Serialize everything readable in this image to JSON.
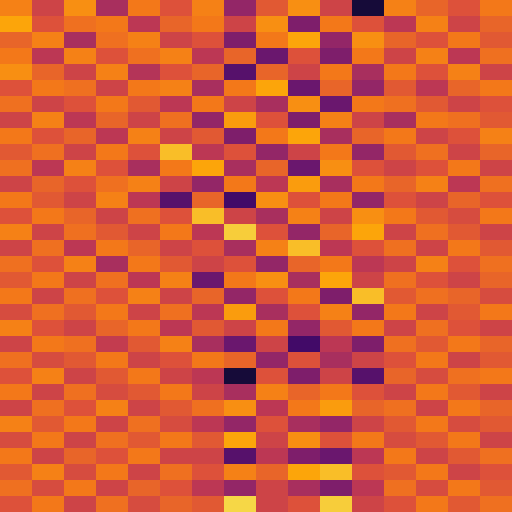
{
  "chart_data": {
    "type": "heatmap",
    "color": "inferno",
    "tick_labels": false,
    "grid": false,
    "zlim": [
      0,
      1
    ],
    "z": [
      [
        0.72,
        0.55,
        0.75,
        0.45,
        0.7,
        0.6,
        0.72,
        0.4,
        0.62,
        0.75,
        0.55,
        0.1,
        0.72,
        0.65,
        0.6,
        0.7
      ],
      [
        0.8,
        0.6,
        0.68,
        0.7,
        0.5,
        0.65,
        0.7,
        0.55,
        0.75,
        0.35,
        0.7,
        0.6,
        0.5,
        0.72,
        0.55,
        0.65
      ],
      [
        0.65,
        0.72,
        0.45,
        0.68,
        0.72,
        0.55,
        0.6,
        0.35,
        0.7,
        0.8,
        0.4,
        0.75,
        0.65,
        0.6,
        0.7,
        0.62
      ],
      [
        0.7,
        0.5,
        0.72,
        0.6,
        0.68,
        0.72,
        0.5,
        0.65,
        0.3,
        0.6,
        0.35,
        0.7,
        0.55,
        0.72,
        0.5,
        0.68
      ],
      [
        0.75,
        0.65,
        0.55,
        0.72,
        0.48,
        0.6,
        0.65,
        0.25,
        0.65,
        0.55,
        0.7,
        0.45,
        0.7,
        0.6,
        0.72,
        0.55
      ],
      [
        0.6,
        0.7,
        0.68,
        0.55,
        0.7,
        0.72,
        0.45,
        0.7,
        0.8,
        0.3,
        0.65,
        0.4,
        0.62,
        0.5,
        0.65,
        0.7
      ],
      [
        0.68,
        0.55,
        0.6,
        0.7,
        0.62,
        0.5,
        0.7,
        0.55,
        0.45,
        0.75,
        0.3,
        0.7,
        0.68,
        0.62,
        0.55,
        0.6
      ],
      [
        0.55,
        0.72,
        0.5,
        0.65,
        0.55,
        0.68,
        0.4,
        0.78,
        0.6,
        0.35,
        0.72,
        0.55,
        0.45,
        0.7,
        0.68,
        0.62
      ],
      [
        0.7,
        0.6,
        0.65,
        0.5,
        0.72,
        0.55,
        0.62,
        0.35,
        0.7,
        0.8,
        0.45,
        0.65,
        0.7,
        0.55,
        0.6,
        0.72
      ],
      [
        0.62,
        0.68,
        0.55,
        0.7,
        0.6,
        0.85,
        0.5,
        0.6,
        0.4,
        0.55,
        0.7,
        0.4,
        0.62,
        0.68,
        0.55,
        0.65
      ],
      [
        0.68,
        0.5,
        0.72,
        0.6,
        0.45,
        0.7,
        0.8,
        0.45,
        0.65,
        0.3,
        0.75,
        0.6,
        0.55,
        0.6,
        0.7,
        0.55
      ],
      [
        0.55,
        0.65,
        0.6,
        0.68,
        0.72,
        0.55,
        0.4,
        0.7,
        0.5,
        0.78,
        0.45,
        0.7,
        0.65,
        0.72,
        0.5,
        0.68
      ],
      [
        0.7,
        0.62,
        0.55,
        0.72,
        0.5,
        0.25,
        0.65,
        0.2,
        0.75,
        0.6,
        0.7,
        0.4,
        0.6,
        0.55,
        0.65,
        0.6
      ],
      [
        0.6,
        0.7,
        0.65,
        0.55,
        0.68,
        0.6,
        0.85,
        0.55,
        0.45,
        0.72,
        0.55,
        0.75,
        0.7,
        0.62,
        0.58,
        0.7
      ],
      [
        0.72,
        0.55,
        0.68,
        0.62,
        0.55,
        0.7,
        0.5,
        0.88,
        0.6,
        0.4,
        0.65,
        0.8,
        0.55,
        0.68,
        0.62,
        0.55
      ],
      [
        0.55,
        0.68,
        0.5,
        0.7,
        0.65,
        0.55,
        0.6,
        0.45,
        0.72,
        0.85,
        0.5,
        0.6,
        0.68,
        0.55,
        0.7,
        0.62
      ],
      [
        0.68,
        0.6,
        0.72,
        0.45,
        0.7,
        0.62,
        0.55,
        0.6,
        0.4,
        0.65,
        0.7,
        0.5,
        0.55,
        0.72,
        0.6,
        0.68
      ],
      [
        0.62,
        0.7,
        0.55,
        0.68,
        0.5,
        0.72,
        0.3,
        0.7,
        0.75,
        0.45,
        0.8,
        0.55,
        0.68,
        0.6,
        0.55,
        0.65
      ],
      [
        0.7,
        0.55,
        0.68,
        0.6,
        0.72,
        0.55,
        0.65,
        0.4,
        0.6,
        0.7,
        0.35,
        0.85,
        0.62,
        0.68,
        0.65,
        0.58
      ],
      [
        0.58,
        0.68,
        0.62,
        0.7,
        0.55,
        0.68,
        0.5,
        0.78,
        0.45,
        0.6,
        0.72,
        0.4,
        0.7,
        0.55,
        0.62,
        0.7
      ],
      [
        0.72,
        0.6,
        0.55,
        0.65,
        0.7,
        0.5,
        0.62,
        0.55,
        0.7,
        0.4,
        0.62,
        0.7,
        0.55,
        0.68,
        0.6,
        0.55
      ],
      [
        0.55,
        0.7,
        0.68,
        0.52,
        0.62,
        0.72,
        0.45,
        0.3,
        0.55,
        0.2,
        0.5,
        0.35,
        0.68,
        0.62,
        0.7,
        0.65
      ],
      [
        0.68,
        0.58,
        0.62,
        0.7,
        0.55,
        0.6,
        0.7,
        0.65,
        0.4,
        0.6,
        0.45,
        0.55,
        0.6,
        0.7,
        0.55,
        0.62
      ],
      [
        0.6,
        0.72,
        0.55,
        0.62,
        0.7,
        0.55,
        0.5,
        0.1,
        0.6,
        0.35,
        0.55,
        0.25,
        0.65,
        0.58,
        0.68,
        0.7
      ],
      [
        0.7,
        0.55,
        0.68,
        0.58,
        0.62,
        0.7,
        0.55,
        0.45,
        0.72,
        0.65,
        0.7,
        0.6,
        0.55,
        0.7,
        0.62,
        0.55
      ],
      [
        0.55,
        0.68,
        0.6,
        0.72,
        0.55,
        0.62,
        0.68,
        0.75,
        0.5,
        0.7,
        0.78,
        0.65,
        0.68,
        0.55,
        0.7,
        0.65
      ],
      [
        0.72,
        0.62,
        0.7,
        0.55,
        0.68,
        0.58,
        0.5,
        0.4,
        0.6,
        0.45,
        0.4,
        0.55,
        0.62,
        0.7,
        0.58,
        0.62
      ],
      [
        0.58,
        0.7,
        0.55,
        0.68,
        0.62,
        0.7,
        0.62,
        0.8,
        0.55,
        0.75,
        0.6,
        0.7,
        0.58,
        0.62,
        0.7,
        0.55
      ],
      [
        0.7,
        0.55,
        0.65,
        0.6,
        0.7,
        0.55,
        0.55,
        0.25,
        0.5,
        0.35,
        0.3,
        0.5,
        0.7,
        0.55,
        0.62,
        0.68
      ],
      [
        0.62,
        0.72,
        0.58,
        0.7,
        0.55,
        0.68,
        0.6,
        0.72,
        0.65,
        0.8,
        0.85,
        0.6,
        0.62,
        0.7,
        0.55,
        0.6
      ],
      [
        0.68,
        0.58,
        0.7,
        0.55,
        0.65,
        0.6,
        0.5,
        0.4,
        0.55,
        0.45,
        0.35,
        0.5,
        0.68,
        0.58,
        0.7,
        0.62
      ],
      [
        0.6,
        0.7,
        0.55,
        0.68,
        0.58,
        0.65,
        0.62,
        0.9,
        0.55,
        0.6,
        0.88,
        0.55,
        0.6,
        0.7,
        0.62,
        0.68
      ]
    ]
  }
}
